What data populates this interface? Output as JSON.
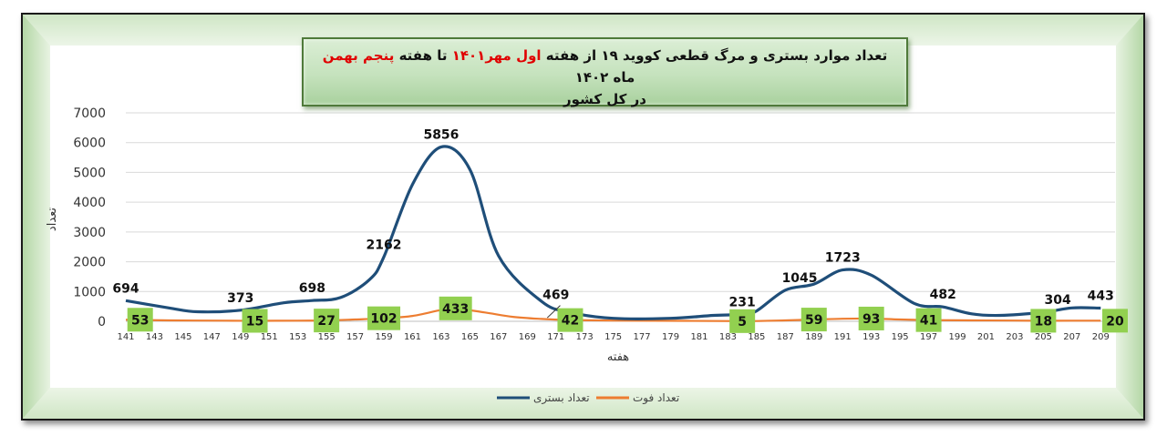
{
  "title": {
    "part1": "تعداد موارد بستری و مرگ قطعی کووید ۱۹ از هفته ",
    "highlight1": "اول مهر۱۴۰۱",
    "part2": " تا هفته ",
    "highlight2": "پنجم بهمن",
    "part3": " ماه ۱۴۰۲",
    "line2": "در کل کشور"
  },
  "colors": {
    "hospitalized": "#1f4e79",
    "deaths": "#ed7d31",
    "label_box": "#92d050",
    "title_highlight": "#e00000"
  },
  "chart_data": {
    "type": "line",
    "xlabel": "هفته",
    "ylabel": "تعداد",
    "ylim": [
      0,
      7000
    ],
    "yticks": [
      0,
      1000,
      2000,
      3000,
      4000,
      5000,
      6000,
      7000
    ],
    "xlim": [
      141,
      210
    ],
    "xticks": [
      141,
      143,
      145,
      147,
      149,
      151,
      153,
      155,
      157,
      159,
      161,
      163,
      165,
      167,
      169,
      171,
      173,
      175,
      177,
      179,
      181,
      183,
      185,
      187,
      189,
      191,
      193,
      195,
      197,
      199,
      201,
      203,
      205,
      207,
      209
    ],
    "grid": true,
    "legend_position": "bottom",
    "series": [
      {
        "name": "تعداد بستری",
        "color": "#1f4e79",
        "points": [
          [
            141,
            694
          ],
          [
            144,
            450
          ],
          [
            146,
            320
          ],
          [
            149,
            373
          ],
          [
            152,
            620
          ],
          [
            154,
            698
          ],
          [
            156,
            800
          ],
          [
            158,
            1400
          ],
          [
            159,
            2162
          ],
          [
            161,
            4600
          ],
          [
            163,
            5856
          ],
          [
            165,
            5100
          ],
          [
            167,
            2200
          ],
          [
            170,
            669
          ],
          [
            172,
            300
          ],
          [
            175,
            100
          ],
          [
            179,
            100
          ],
          [
            182,
            200
          ],
          [
            184,
            231
          ],
          [
            185,
            350
          ],
          [
            187,
            1045
          ],
          [
            189,
            1250
          ],
          [
            191,
            1723
          ],
          [
            193,
            1550
          ],
          [
            196,
            600
          ],
          [
            198,
            482
          ],
          [
            200,
            250
          ],
          [
            202,
            200
          ],
          [
            205,
            304
          ],
          [
            207,
            450
          ],
          [
            209,
            443
          ]
        ],
        "labels": [
          [
            141,
            694
          ],
          [
            149,
            373
          ],
          [
            154,
            698
          ],
          [
            159,
            2162
          ],
          [
            163,
            5856
          ],
          [
            171,
            469
          ],
          [
            184,
            231
          ],
          [
            188,
            1045
          ],
          [
            191,
            1723
          ],
          [
            198,
            482
          ],
          [
            206,
            304
          ],
          [
            209,
            443
          ]
        ]
      },
      {
        "name": "تعداد فوت",
        "color": "#ed7d31",
        "points": [
          [
            141,
            53
          ],
          [
            144,
            30
          ],
          [
            148,
            20
          ],
          [
            150,
            15
          ],
          [
            153,
            22
          ],
          [
            155,
            27
          ],
          [
            157,
            60
          ],
          [
            159,
            102
          ],
          [
            161,
            180
          ],
          [
            163,
            380
          ],
          [
            164,
            433
          ],
          [
            166,
            300
          ],
          [
            168,
            150
          ],
          [
            170,
            80
          ],
          [
            172,
            42
          ],
          [
            175,
            25
          ],
          [
            180,
            15
          ],
          [
            184,
            5
          ],
          [
            187,
            30
          ],
          [
            189,
            59
          ],
          [
            191,
            85
          ],
          [
            193,
            93
          ],
          [
            195,
            60
          ],
          [
            197,
            41
          ],
          [
            200,
            30
          ],
          [
            203,
            25
          ],
          [
            205,
            18
          ],
          [
            207,
            20
          ],
          [
            209,
            20
          ]
        ],
        "labels": [
          [
            142,
            53
          ],
          [
            150,
            15
          ],
          [
            155,
            27
          ],
          [
            159,
            102
          ],
          [
            164,
            433
          ],
          [
            172,
            42
          ],
          [
            184,
            5
          ],
          [
            189,
            59
          ],
          [
            193,
            93
          ],
          [
            197,
            41
          ],
          [
            205,
            18
          ],
          [
            210,
            20
          ]
        ]
      }
    ]
  }
}
